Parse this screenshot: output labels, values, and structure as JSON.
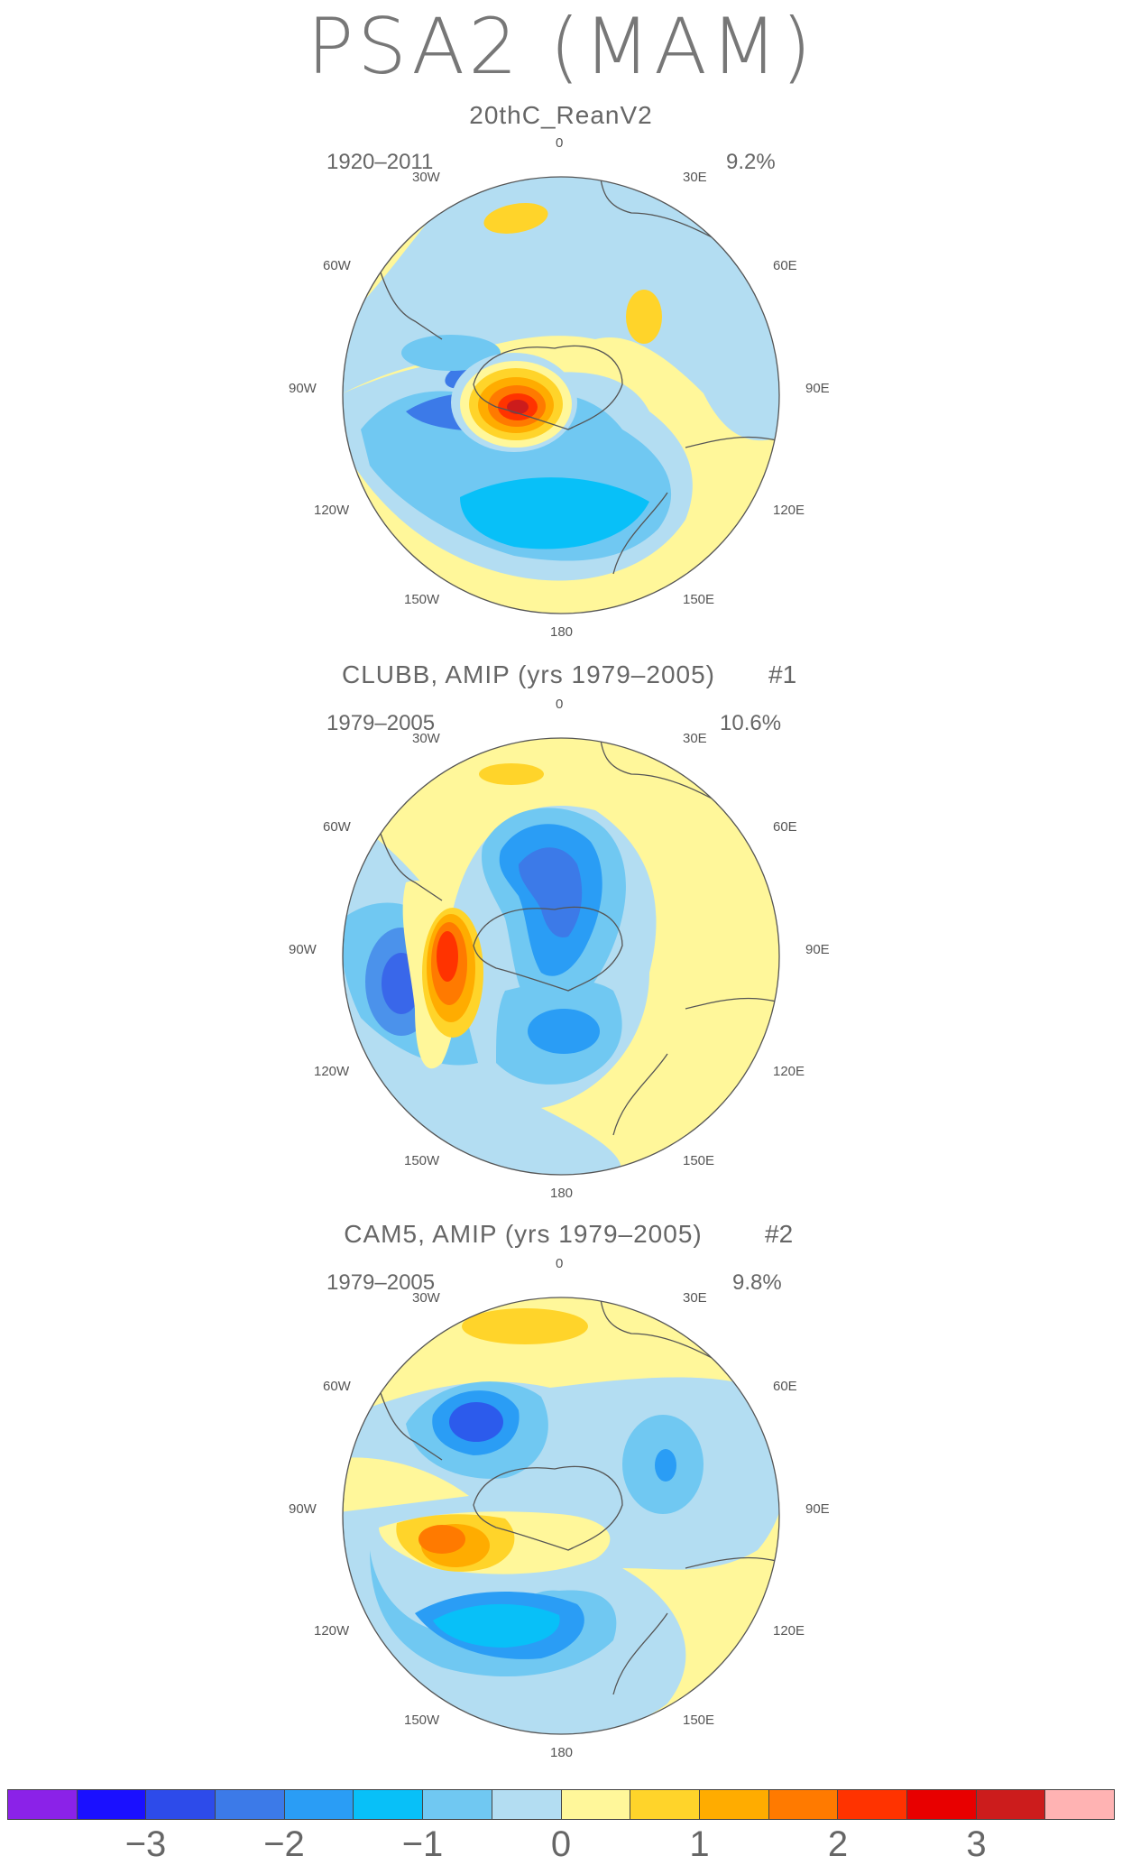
{
  "title": "PSA2 (MAM)",
  "panels": [
    {
      "title": "20thC_ReanV2",
      "number": "",
      "period": "1920–2011",
      "percent": "9.2%"
    },
    {
      "title": "CLUBB, AMIP (yrs 1979–2005)",
      "number": "#1",
      "period": "1979–2005",
      "percent": "10.6%"
    },
    {
      "title": "CAM5, AMIP (yrs 1979–2005)",
      "number": "#2",
      "period": "1979–2005",
      "percent": "9.8%"
    }
  ],
  "lon_labels": [
    "0",
    "30E",
    "60E",
    "90E",
    "120E",
    "150E",
    "180",
    "150W",
    "120W",
    "90W",
    "60W",
    "30W"
  ],
  "colorbar": {
    "colors": [
      "#8b22e8",
      "#1a10ff",
      "#2d4bea",
      "#3c7ae8",
      "#2a9df5",
      "#08c0f8",
      "#70c8f2",
      "#b3ddf2",
      "#fff79a",
      "#ffd42a",
      "#ffac00",
      "#ff7a00",
      "#ff3300",
      "#e80000",
      "#cc1c1c",
      "#ffb3b3"
    ],
    "labels": [
      "−3",
      "−2",
      "−1",
      "0",
      "1",
      "2",
      "3"
    ]
  },
  "colors": {
    "coastline": "#555555",
    "text": "#666666"
  }
}
